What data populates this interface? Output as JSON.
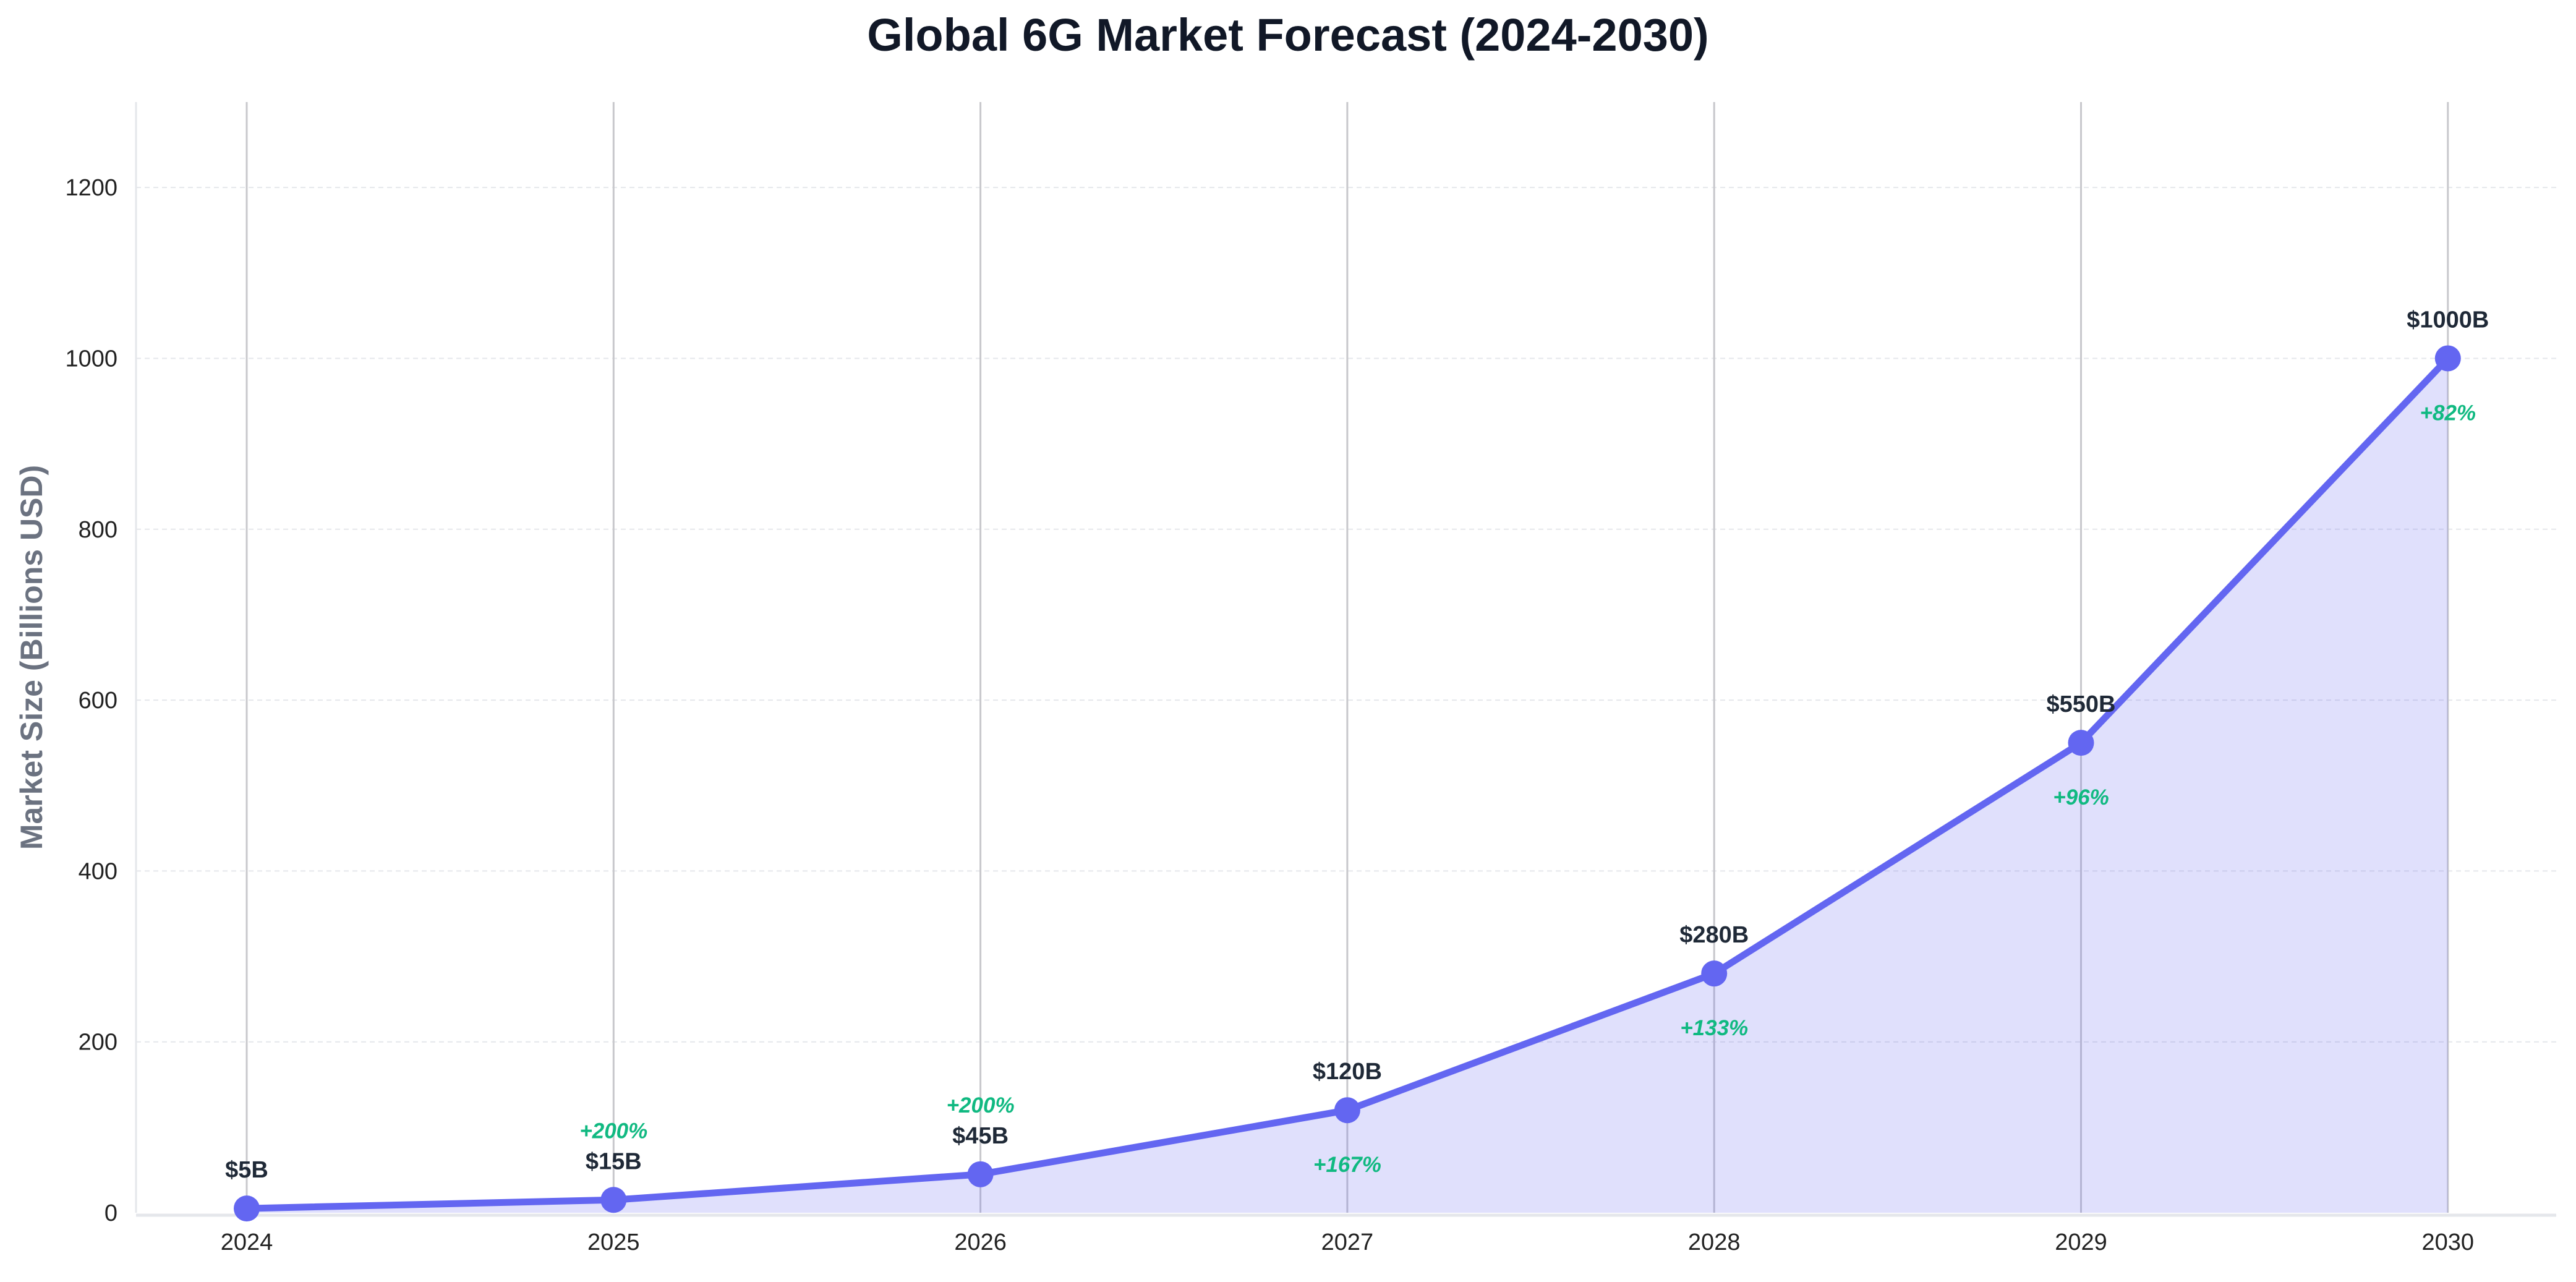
{
  "chart_data": {
    "type": "line",
    "title": "Global 6G Market Forecast (2024-2030)",
    "xlabel": "",
    "ylabel": "Market Size (Billions USD)",
    "categories": [
      "2024",
      "2025",
      "2026",
      "2027",
      "2028",
      "2029",
      "2030"
    ],
    "values": [
      5,
      15,
      45,
      120,
      280,
      550,
      1000
    ],
    "data_labels": [
      "$5B",
      "$15B",
      "$45B",
      "$120B",
      "$280B",
      "$550B",
      "$1000B"
    ],
    "growth_labels": [
      "",
      "+200%",
      "+200%",
      "+167%",
      "+133%",
      "+96%",
      "+82%"
    ],
    "ylim": [
      0,
      1300
    ],
    "yticks": [
      0,
      200,
      400,
      600,
      800,
      1000,
      1200
    ],
    "grid": true,
    "area_fill": true,
    "colors": {
      "line": "#6366f1",
      "fill": "#6366f1",
      "growth": "#10b981",
      "label": "#1f2937"
    }
  }
}
